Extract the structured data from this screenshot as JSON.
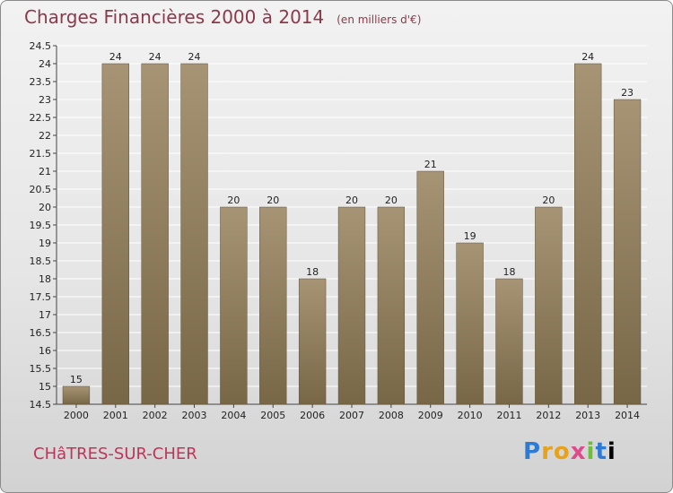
{
  "header": {
    "title": "Charges Financières 2000 à 2014",
    "subtitle": "(en milliers d'€)"
  },
  "footer": {
    "town": "CHâTRES-SUR-CHER",
    "logo": [
      "P",
      "r",
      "o",
      "x",
      "i",
      "t",
      "i"
    ]
  },
  "colors": {
    "bar_top": "#a69475",
    "bar_bottom": "#786747",
    "title": "#8a3a4a",
    "town": "#c0345a"
  },
  "chart_data": {
    "type": "bar",
    "title": "Charges Financières 2000 à 2014",
    "subtitle": "(en milliers d'€)",
    "categories": [
      "2000",
      "2001",
      "2002",
      "2003",
      "2004",
      "2005",
      "2006",
      "2007",
      "2008",
      "2009",
      "2010",
      "2011",
      "2012",
      "2013",
      "2014"
    ],
    "values": [
      15,
      24,
      24,
      24,
      20,
      20,
      18,
      20,
      20,
      21,
      19,
      18,
      20,
      24,
      23
    ],
    "ylim": [
      14.5,
      24.5
    ],
    "yticks": [
      "14.5",
      "15",
      "15.5",
      "16",
      "16.5",
      "17",
      "17.5",
      "18",
      "18.5",
      "19",
      "19.5",
      "20",
      "20.5",
      "21",
      "21.5",
      "22",
      "22.5",
      "23",
      "23.5",
      "24",
      "24.5"
    ],
    "grid": true,
    "legend": "none"
  }
}
